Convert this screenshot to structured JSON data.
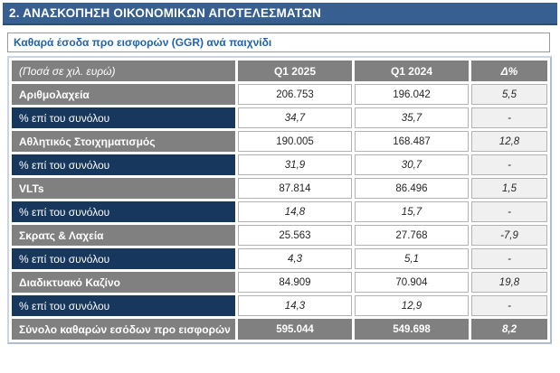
{
  "page": {
    "section_title": "2. ΑΝΑΣΚΟΠΗΣΗ ΟΙΚΟΝΟΜΙΚΩΝ ΑΠΟΤΕΛΕΣΜΑΤΩΝ"
  },
  "table": {
    "title": "Καθαρά έσοδα προ εισφορών (GGR) ανά παιχνίδι",
    "columns": {
      "label": "(Ποσά σε χιλ. ευρώ)",
      "q1_2025": "Q1 2025",
      "q1_2024": "Q1 2024",
      "delta": "Δ%"
    },
    "rows": [
      {
        "label": "Αριθμολαχεία",
        "q1_2025": "206.753",
        "q1_2024": "196.042",
        "delta": "5,5"
      },
      {
        "label": "% επί του συνόλου",
        "q1_2025": "34,7",
        "q1_2024": "35,7",
        "delta": "-"
      },
      {
        "label": "Αθλητικός Στοιχηματισμός",
        "q1_2025": "190.005",
        "q1_2024": "168.487",
        "delta": "12,8"
      },
      {
        "label": "% επί του συνόλου",
        "q1_2025": "31,9",
        "q1_2024": "30,7",
        "delta": "-"
      },
      {
        "label": "VLTs",
        "q1_2025": "87.814",
        "q1_2024": "86.496",
        "delta": "1,5"
      },
      {
        "label": "% επί του συνόλου",
        "q1_2025": "14,8",
        "q1_2024": "15,7",
        "delta": "-"
      },
      {
        "label": "Σκρατς & Λαχεία",
        "q1_2025": "25.563",
        "q1_2024": "27.768",
        "delta": "-7,9"
      },
      {
        "label": "% επί του συνόλου",
        "q1_2025": "4,3",
        "q1_2024": "5,1",
        "delta": "-"
      },
      {
        "label": "Διαδικτυακό Καζίνο",
        "q1_2025": "84.909",
        "q1_2024": "70.904",
        "delta": "19,8"
      },
      {
        "label": "% επί του συνόλου",
        "q1_2025": "14,3",
        "q1_2024": "12,9",
        "delta": "-"
      },
      {
        "label": "Σύνολο καθαρών εσόδων προ εισφορών",
        "q1_2025": "595.044",
        "q1_2024": "549.698",
        "delta": "8,2"
      }
    ]
  },
  "colors": {
    "banner_blue": "#376091",
    "row_gray": "#808080",
    "row_navy": "#17375D",
    "delta_bg": "#F0F0F0",
    "title_blue": "#1F63AF",
    "outer_border": "#AEBDD3"
  }
}
